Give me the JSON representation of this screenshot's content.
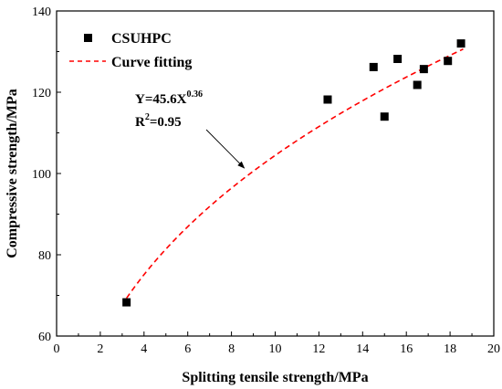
{
  "chart_data": {
    "type": "scatter",
    "xlabel": "Splitting tensile strength/MPa",
    "ylabel": "Compressive strength/MPa",
    "xlim": [
      0,
      20
    ],
    "ylim": [
      60,
      140
    ],
    "xticks": [
      0,
      2,
      4,
      6,
      8,
      10,
      12,
      14,
      16,
      18,
      20
    ],
    "yticks": [
      60,
      80,
      100,
      120,
      140
    ],
    "grid": false,
    "legend_position": "top-left",
    "series": [
      {
        "name": "CSUHPC",
        "kind": "scatter",
        "marker": "square",
        "color": "#000000",
        "x": [
          3.2,
          12.4,
          14.5,
          15.0,
          15.6,
          16.5,
          16.8,
          17.9,
          18.5
        ],
        "y": [
          68.3,
          118.2,
          126.2,
          114.0,
          128.2,
          121.8,
          125.7,
          127.7,
          132.0
        ]
      },
      {
        "name": "Curve fitting",
        "kind": "line",
        "style": "dashed",
        "color": "#ff0000",
        "equation": {
          "coefficient": 45.6,
          "exponent": 0.36
        },
        "x_range": [
          3.2,
          18.6
        ]
      }
    ],
    "annotation": {
      "equation_prefix": "Y=45.6X",
      "equation_exponent": "0.36",
      "r2_prefix": "R",
      "r2_exponent": "2",
      "r2_suffix": "=0.95",
      "arrow_to": {
        "x": 8.5,
        "y": 100
      }
    }
  }
}
